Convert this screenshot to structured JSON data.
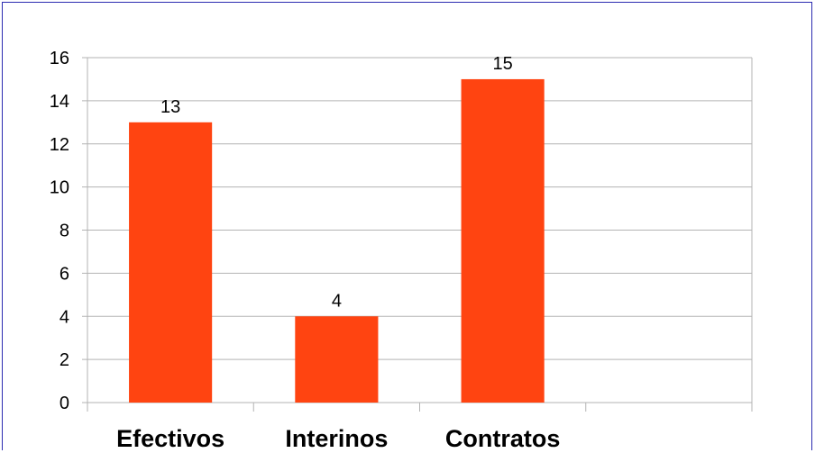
{
  "chart_data": {
    "type": "bar",
    "categories": [
      "Efectivos",
      "Interinos",
      "Contratos",
      ""
    ],
    "values": [
      13,
      4,
      15,
      null
    ],
    "data_labels": [
      "13",
      "4",
      "15",
      ""
    ],
    "ylim": [
      0,
      16
    ],
    "yticks": [
      0,
      2,
      4,
      6,
      8,
      10,
      12,
      14,
      16
    ],
    "grid": true,
    "bar_color": "#ff4411",
    "grid_color": "#b3b3b3",
    "frame_color": "#2b2bb0"
  }
}
